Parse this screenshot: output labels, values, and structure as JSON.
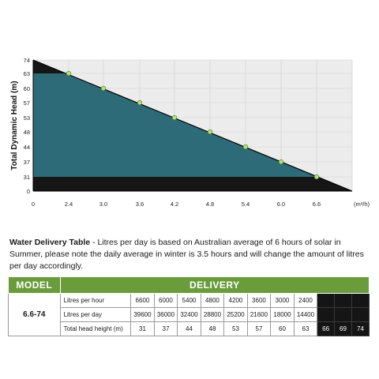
{
  "chart_data": {
    "type": "area",
    "title": "",
    "xlabel": "",
    "x_unit": "(m³/h)",
    "ylabel": "Total Dynamic Head (m)",
    "x": [
      0,
      2.4,
      3.0,
      3.6,
      4.2,
      4.8,
      5.4,
      6.0,
      6.6,
      7.5
    ],
    "x_ticks": [
      "0",
      "2.4",
      "3.0",
      "3.6",
      "4.2",
      "4.8",
      "5.4",
      "6.0",
      "6.6"
    ],
    "y_ticks": [
      "0",
      "31",
      "37",
      "44",
      "48",
      "53",
      "57",
      "60",
      "63",
      "74"
    ],
    "curve": [
      [
        0,
        74
      ],
      [
        7.5,
        0
      ]
    ],
    "points": [
      [
        2.4,
        63
      ],
      [
        3.0,
        60
      ],
      [
        3.6,
        57
      ],
      [
        4.2,
        53
      ],
      [
        4.8,
        48
      ],
      [
        5.4,
        44
      ],
      [
        6.0,
        37
      ],
      [
        6.6,
        31
      ]
    ],
    "operating_band": [
      31,
      63
    ],
    "grid": true,
    "colors": {
      "band": "#2e6b78",
      "dark": "#161616",
      "point": "#b7e07a",
      "plot_bg": "#ececec"
    }
  },
  "description": {
    "title": "Water Delivery Table",
    "text": " - Litres per day is based on Australian average of 6 hours of solar in Summer, please note the daily average in winter is 3.5 hours and will change the amount of litres per day accordingly."
  },
  "table": {
    "header_model": "MODEL",
    "header_delivery": "DELIVERY",
    "model": "6.6-74",
    "rows": [
      {
        "label": "Litres per hour",
        "values": [
          "6600",
          "6000",
          "5400",
          "4800",
          "4200",
          "3600",
          "3000",
          "2400"
        ],
        "extra": [
          "",
          "",
          ""
        ]
      },
      {
        "label": "Litres per day",
        "values": [
          "39600",
          "36000",
          "32400",
          "28800",
          "25200",
          "21600",
          "18000",
          "14400"
        ],
        "extra": [
          "",
          "",
          ""
        ]
      },
      {
        "label": "Total head height (m)",
        "values": [
          "31",
          "37",
          "44",
          "48",
          "53",
          "57",
          "60",
          "63"
        ],
        "extra": [
          "66",
          "69",
          "74"
        ]
      }
    ]
  }
}
